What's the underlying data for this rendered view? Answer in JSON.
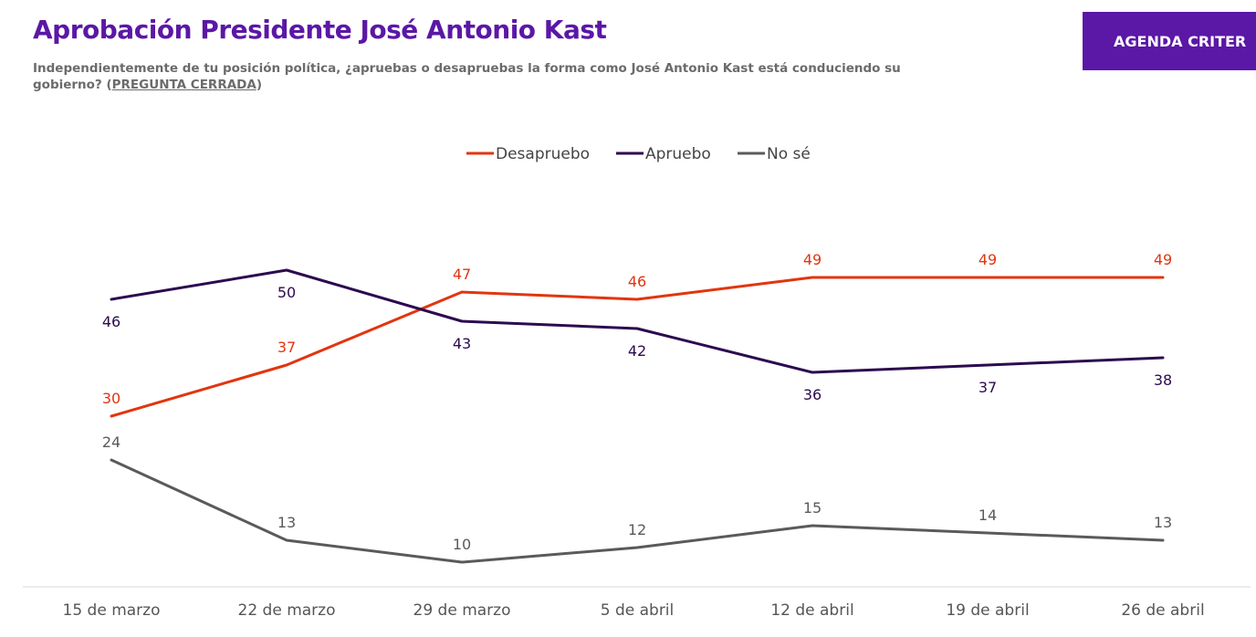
{
  "header": {
    "title": "Aprobación Presidente José Antonio Kast",
    "subtitle_main": "Independientemente de tu posición política, ¿apruebas o desapruebas la forma como José Antonio Kast está conduciendo su gobierno? (",
    "subtitle_link": "PREGUNTA CERRADA",
    "subtitle_end": ")",
    "agenda_button": "AGENDA CRITER"
  },
  "colors": {
    "brand": "#5b17a6",
    "desapruebo": "#e2350f",
    "apruebo": "#2c0a4f",
    "nose": "#5a5a5a",
    "axis": "#d9d9d9",
    "tick_text": "#555555"
  },
  "chart_data": {
    "type": "line",
    "title": "Aprobación Presidente José Antonio Kast",
    "categories": [
      "15 de marzo",
      "22 de marzo",
      "29 de marzo",
      "5 de abril",
      "12 de abril",
      "19 de abril",
      "26 de abril"
    ],
    "series": [
      {
        "name": "Desapruebo",
        "values": [
          30,
          37,
          47,
          46,
          49,
          49,
          49
        ],
        "color": "#e2350f",
        "label_position": [
          "above",
          "above",
          "above",
          "above",
          "above",
          "above",
          "above"
        ]
      },
      {
        "name": "Apruebo",
        "values": [
          46,
          50,
          43,
          42,
          36,
          37,
          38
        ],
        "color": "#2c0a4f",
        "label_position": [
          "below",
          "below",
          "below",
          "below",
          "below",
          "below",
          "below"
        ]
      },
      {
        "name": "No sé",
        "values": [
          24,
          13,
          10,
          12,
          15,
          14,
          13
        ],
        "color": "#5a5a5a",
        "label_position": [
          "above",
          "above",
          "above",
          "above",
          "above",
          "above",
          "above"
        ]
      }
    ],
    "ylim": [
      6,
      66
    ],
    "grid": false,
    "legend": "top-center",
    "data_labels": true
  }
}
